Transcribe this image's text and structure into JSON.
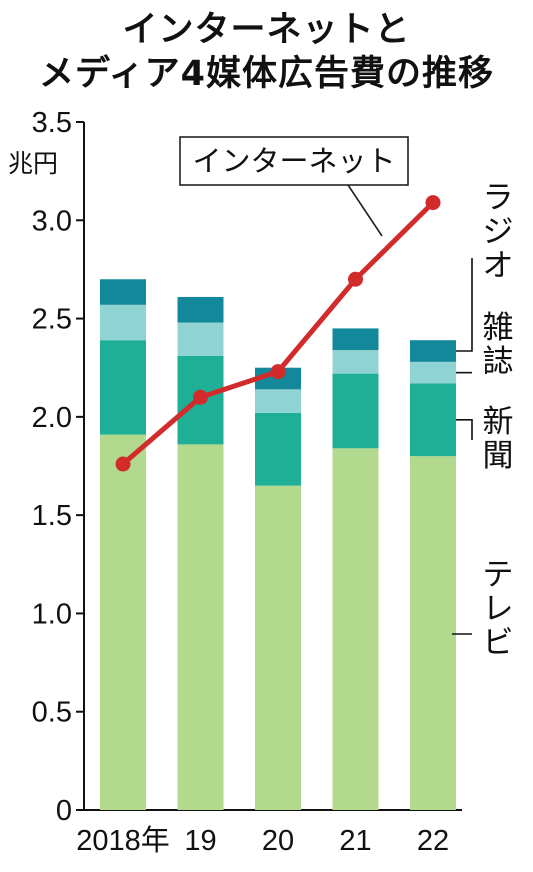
{
  "title_lines": [
    "インターネットと",
    "メディア4媒体広告費の推移"
  ],
  "chart_data": {
    "type": "bar",
    "title": "インターネットとメディア4媒体広告費の推移",
    "ylabel": "兆円",
    "xlabel": "",
    "ylim": [
      0,
      3.5
    ],
    "yticks": [
      "0",
      "0.5",
      "1.0",
      "1.5",
      "2.0",
      "2.5",
      "3.0",
      "3.5"
    ],
    "categories": [
      "2018年",
      "19",
      "20",
      "21",
      "22"
    ],
    "stacked_series": [
      {
        "name": "テレビ",
        "color": "#b3d98f",
        "values": [
          1.91,
          1.86,
          1.65,
          1.84,
          1.8
        ]
      },
      {
        "name": "新聞",
        "color": "#1fae96",
        "values": [
          0.48,
          0.45,
          0.37,
          0.38,
          0.37
        ]
      },
      {
        "name": "雑誌",
        "color": "#8fd3d3",
        "values": [
          0.18,
          0.17,
          0.12,
          0.12,
          0.11
        ]
      },
      {
        "name": "ラジオ",
        "color": "#12889a",
        "values": [
          0.13,
          0.13,
          0.11,
          0.11,
          0.11
        ]
      }
    ],
    "line_series": {
      "name": "インターネット",
      "color": "#d22b2b",
      "values": [
        1.76,
        2.1,
        2.23,
        2.7,
        3.09
      ]
    },
    "legend_labels": [
      {
        "name": "ラジオ",
        "vertical": true
      },
      {
        "name": "雑誌",
        "vertical": true
      },
      {
        "name": "新聞",
        "vertical": true
      },
      {
        "name": "テレビ",
        "vertical": true
      }
    ],
    "callout": "インターネット"
  }
}
